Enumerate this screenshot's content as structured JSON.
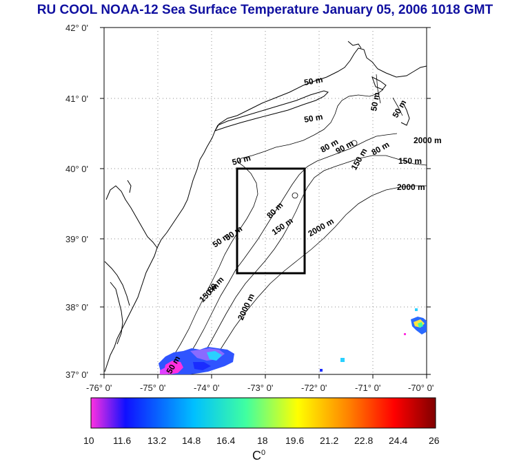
{
  "title": "RU COOL  NOAA-12 Sea Surface Temperature January 05, 2006 1018 GMT",
  "map": {
    "lat_labels": [
      "42° 0'",
      "41° 0'",
      "40° 0'",
      "39° 0'",
      "38° 0'",
      "37° 0'"
    ],
    "lon_labels": [
      "-76° 0'",
      "-75° 0'",
      "-74° 0'",
      "-73° 0'",
      "-72° 0'",
      "-71° 0'",
      "-70° 0'"
    ],
    "lat_range": [
      37,
      42
    ],
    "lon_range": [
      -76,
      -70
    ],
    "grid": "dotted",
    "study_box": {
      "lon_min": -73.45,
      "lon_max": -72.25,
      "lat_min": 38.5,
      "lat_max": 40.0
    },
    "contour_labels": [
      "50 m",
      "50 m",
      "80 m",
      "90 m",
      "150 m",
      "2000 m",
      "50 m",
      "50 m",
      "80 m",
      "150 m",
      "2000 m",
      "50 m",
      "80 m",
      "150 m",
      "2000 m",
      "50 m",
      "50 m",
      "50 m",
      "80 m",
      "150 m",
      "2000 m"
    ]
  },
  "colorbar": {
    "ticks": [
      "10",
      "11.6",
      "13.2",
      "14.8",
      "16.4",
      "18",
      "19.6",
      "21.2",
      "22.8",
      "24.4",
      "26"
    ],
    "min": 10,
    "max": 26,
    "unit": "C",
    "unit_sup": "0",
    "colors": [
      "#ff30e0",
      "#1010ff",
      "#00c0ff",
      "#40ffa0",
      "#ffff00",
      "#ff8000",
      "#ff0000",
      "#800000"
    ]
  }
}
